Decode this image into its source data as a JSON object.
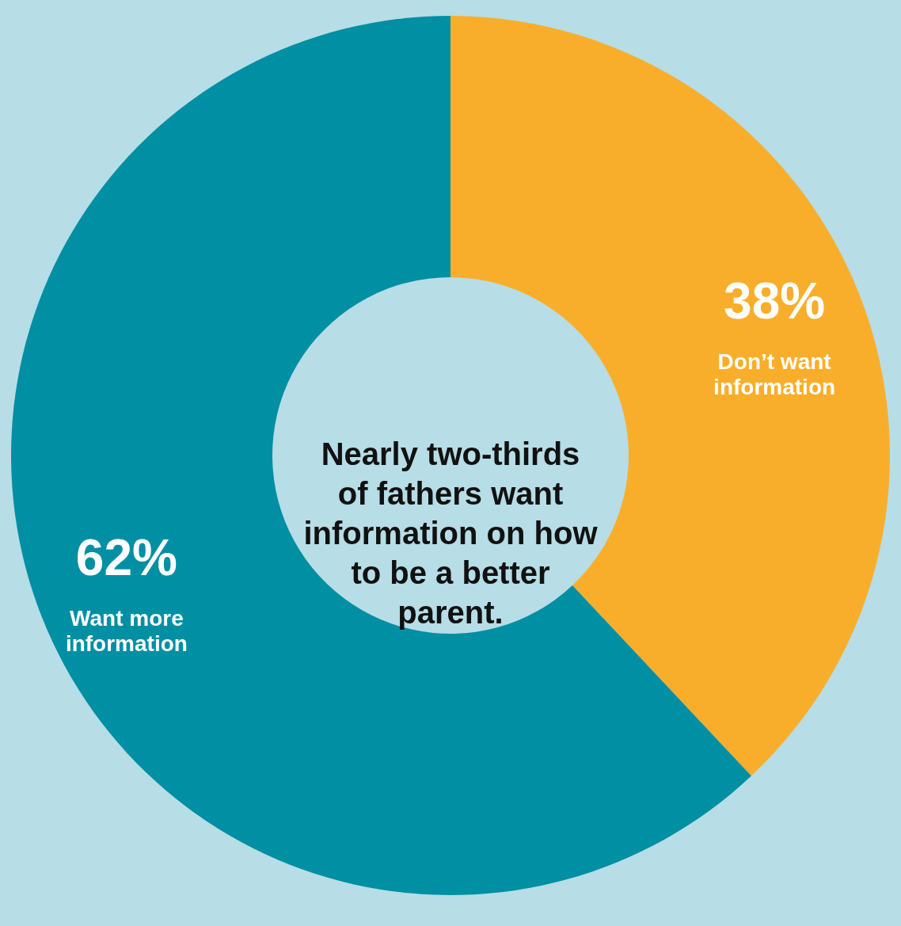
{
  "chart_data": {
    "type": "donut",
    "title": "Nearly two-thirds of fathers want information on how to be a better parent.",
    "categories": [
      "Don’t want information",
      "Want more information"
    ],
    "values": [
      38,
      62
    ],
    "colors": [
      "#f9ae2b",
      "#008fa3"
    ],
    "value_labels": [
      "38%",
      "62%"
    ]
  }
}
